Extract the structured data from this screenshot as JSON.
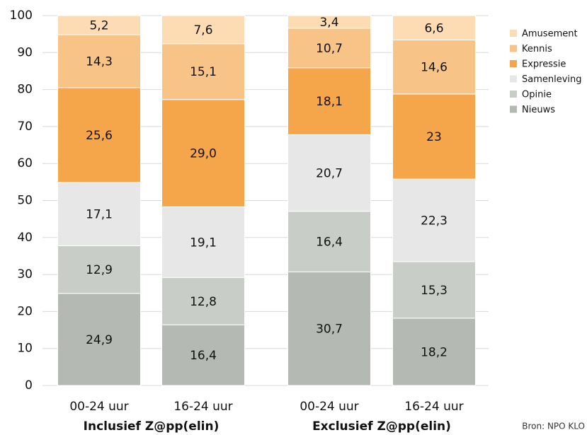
{
  "chart_data": {
    "type": "stacked_bar",
    "categories": [
      "00-24 uur",
      "16-24 uur",
      "00-24 uur",
      "16-24 uur"
    ],
    "groups": [
      "Inclusief Z@pp(elin)",
      "Exclusief Z@pp(elin)"
    ],
    "series": [
      {
        "name": "Nieuws",
        "color": "#b4bab3",
        "values": [
          24.9,
          16.4,
          30.7,
          18.2
        ],
        "value_labels": [
          "24,9",
          "16,4",
          "30,7",
          "18,2"
        ]
      },
      {
        "name": "Opinie",
        "color": "#c8cec7",
        "values": [
          12.9,
          12.8,
          16.4,
          15.3
        ],
        "value_labels": [
          "12,9",
          "12,8",
          "16,4",
          "15,3"
        ]
      },
      {
        "name": "Samenleving",
        "color": "#e7e7e7",
        "values": [
          17.1,
          19.1,
          20.7,
          22.3
        ],
        "value_labels": [
          "17,1",
          "19,1",
          "20,7",
          "22,3"
        ]
      },
      {
        "name": "Expressie",
        "color": "#f5a54a",
        "values": [
          25.6,
          29.0,
          18.1,
          23
        ],
        "value_labels": [
          "25,6",
          "29,0",
          "18,1",
          "23"
        ]
      },
      {
        "name": "Kennis",
        "color": "#f8c386",
        "values": [
          14.3,
          15.1,
          10.7,
          14.6
        ],
        "value_labels": [
          "14,3",
          "15,1",
          "10,7",
          "14,6"
        ]
      },
      {
        "name": "Amusement",
        "color": "#fddbb3",
        "values": [
          5.2,
          7.6,
          3.4,
          6.6
        ],
        "value_labels": [
          "5,2",
          "7,6",
          "3,4",
          "6,6"
        ]
      }
    ],
    "ylim": [
      0,
      100
    ],
    "yticks": [
      0,
      10,
      20,
      30,
      40,
      50,
      60,
      70,
      80,
      90,
      100
    ],
    "grid": true,
    "source": "Bron: NPO KLO"
  }
}
